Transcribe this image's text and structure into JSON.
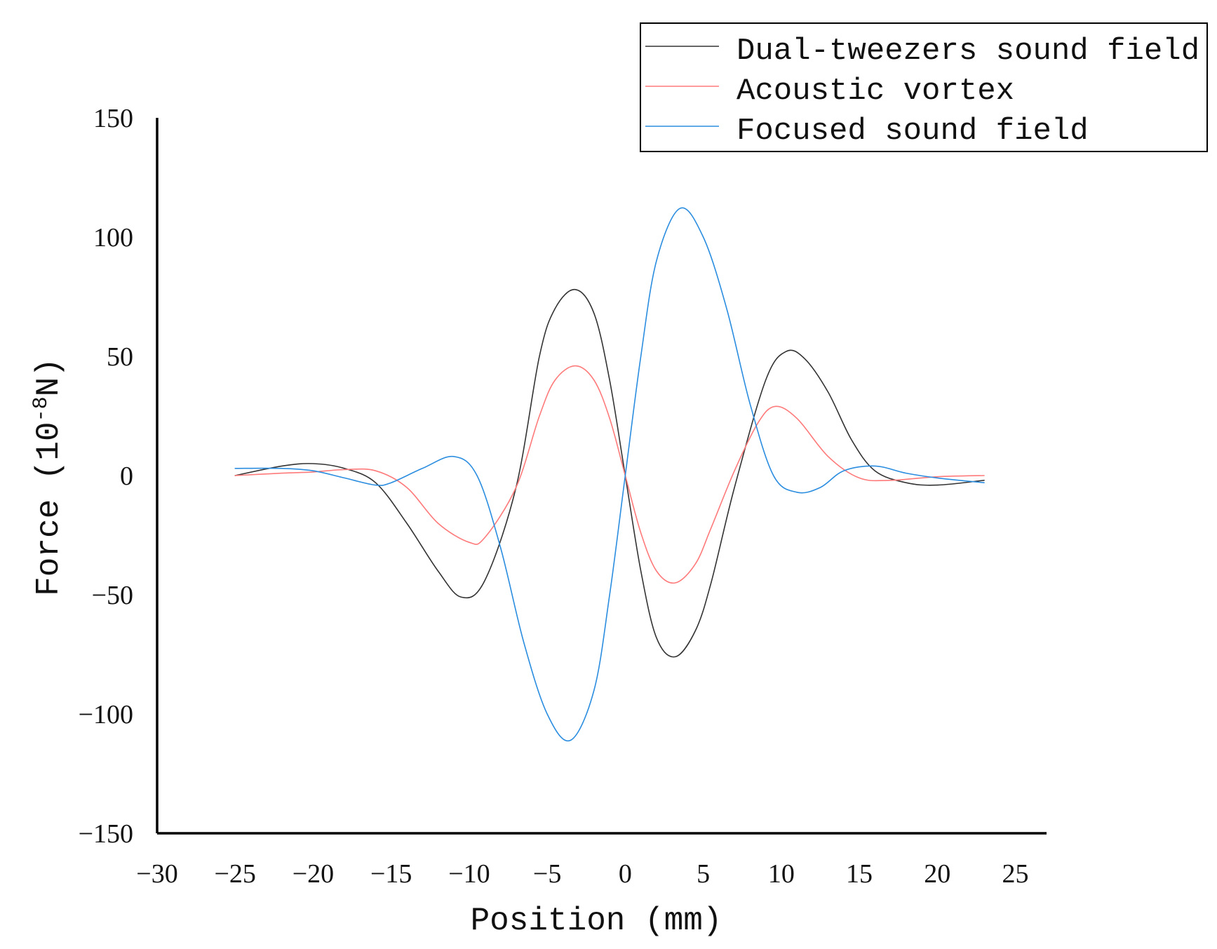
{
  "chart_data": {
    "type": "line",
    "xlabel": "Position (mm)",
    "ylabel_main": "Force (10",
    "ylabel_sup": "-8",
    "ylabel_end": "N)",
    "xlim": [
      -30,
      27
    ],
    "ylim": [
      -150,
      150
    ],
    "xticks": [
      -30,
      -25,
      -20,
      -15,
      -10,
      -5,
      0,
      5,
      10,
      15,
      20,
      25
    ],
    "xtick_labels": [
      "−30",
      "−25",
      "−20",
      "−15",
      "−10",
      "−5",
      "0",
      "5",
      "10",
      "15",
      "20",
      "25"
    ],
    "yticks": [
      150,
      100,
      50,
      0,
      -50,
      -100,
      -150
    ],
    "ytick_labels": [
      "150",
      "100",
      "50",
      "0",
      "−50",
      "−100",
      "−150"
    ],
    "grid": false,
    "legend_position": "top-right",
    "series": [
      {
        "name": "Dual-tweezers sound field",
        "color": "#333333",
        "x": [
          -25,
          -22,
          -20,
          -18,
          -16,
          -14,
          -12,
          -10.5,
          -9,
          -7,
          -5.5,
          -4.5,
          -3.2,
          -2,
          -1,
          0,
          1,
          2,
          3.2,
          4.5,
          5.5,
          7,
          9,
          10.3,
          11.5,
          13,
          14.5,
          16,
          18,
          20,
          23
        ],
        "y": [
          0,
          4,
          5,
          3,
          -3,
          -20,
          -40,
          -51,
          -44,
          -5,
          50,
          70,
          78,
          68,
          40,
          0,
          -40,
          -68,
          -76,
          -65,
          -45,
          -5,
          40,
          52,
          49,
          35,
          15,
          2,
          -3,
          -4,
          -2
        ]
      },
      {
        "name": "Acoustic vortex",
        "color": "#ff7a7a",
        "x": [
          -25,
          -22,
          -20,
          -18,
          -16,
          -14,
          -12,
          -10,
          -9,
          -7,
          -5.5,
          -4.5,
          -3.2,
          -2,
          -1,
          0,
          1,
          2,
          3.2,
          4.5,
          5.5,
          7,
          8.5,
          9.6,
          11,
          13,
          15,
          17,
          20,
          23
        ],
        "y": [
          0,
          1,
          1.5,
          2.5,
          2,
          -5,
          -20,
          -28,
          -26,
          -5,
          25,
          40,
          46,
          40,
          24,
          0,
          -24,
          -40,
          -45,
          -37,
          -22,
          2,
          22,
          29,
          24,
          8,
          -1,
          -2,
          -0.5,
          0
        ]
      },
      {
        "name": "Focused sound field",
        "color": "#2b8de0",
        "x": [
          -25,
          -22,
          -20,
          -18,
          -16,
          -15,
          -13,
          -11,
          -9.5,
          -8,
          -6.5,
          -5,
          -3.5,
          -2,
          -1,
          0,
          1,
          2,
          3.5,
          5,
          6.5,
          8,
          9.5,
          11,
          12.5,
          14,
          16,
          18,
          20,
          23
        ],
        "y": [
          3,
          3,
          2,
          -1,
          -4,
          -3,
          3,
          8,
          0,
          -30,
          -70,
          -100,
          -111,
          -90,
          -50,
          0,
          50,
          90,
          112,
          100,
          70,
          30,
          0,
          -7,
          -5,
          2,
          4,
          1,
          -1,
          -3
        ]
      }
    ]
  }
}
